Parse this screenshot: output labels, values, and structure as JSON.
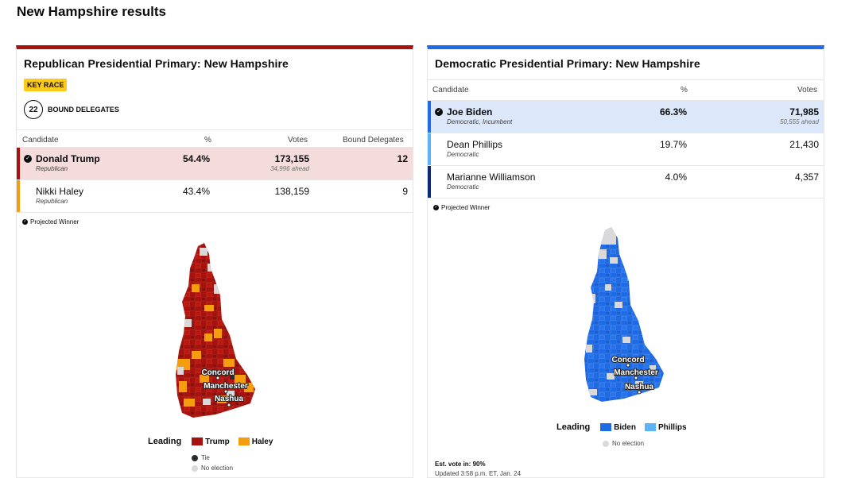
{
  "page": {
    "title": "New Hampshire results"
  },
  "rep": {
    "title": "Republican Presidential Primary: New Hampshire",
    "badge": "KEY RACE",
    "delegates_count": "22",
    "delegates_label": "BOUND DELEGATES",
    "headers": {
      "candidate": "Candidate",
      "pct": "%",
      "votes": "Votes",
      "delegates": "Bound Delegates"
    },
    "rows": [
      {
        "name": "Donald Trump",
        "party": "Republican",
        "pct": "54.4%",
        "votes": "173,155",
        "ahead": "34,996 ahead",
        "delegates": "12",
        "color": "#a8120e",
        "winner": true
      },
      {
        "name": "Nikki Haley",
        "party": "Republican",
        "pct": "43.4%",
        "votes": "138,159",
        "ahead": "",
        "delegates": "9",
        "color": "#f59d0c",
        "winner": false
      }
    ],
    "projected": "Projected Winner",
    "legend": {
      "lead": "Leading",
      "items": [
        "Trump",
        "Haley"
      ],
      "colors": [
        "#a8120e",
        "#f59d0c"
      ],
      "tie": "Tie",
      "no_election": "No election"
    },
    "cities": [
      "Concord",
      "Manchester",
      "Nashua"
    ]
  },
  "dem": {
    "title": "Democratic Presidential Primary: New Hampshire",
    "headers": {
      "candidate": "Candidate",
      "pct": "%",
      "votes": "Votes"
    },
    "rows": [
      {
        "name": "Joe Biden",
        "party": "Democratic, Incumbent",
        "pct": "66.3%",
        "votes": "71,985",
        "ahead": "50,555 ahead",
        "color": "#1e6be6",
        "winner": true
      },
      {
        "name": "Dean Phillips",
        "party": "Democratic",
        "pct": "19.7%",
        "votes": "21,430",
        "ahead": "",
        "color": "#5ab4f5",
        "winner": false
      },
      {
        "name": "Marianne Williamson",
        "party": "Democratic",
        "pct": "4.0%",
        "votes": "4,357",
        "ahead": "",
        "color": "#0a2a78",
        "winner": false
      }
    ],
    "projected": "Projected Winner",
    "legend": {
      "lead": "Leading",
      "items": [
        "Biden",
        "Phillips"
      ],
      "colors": [
        "#1e6be6",
        "#5ab4f5"
      ],
      "no_election": "No election"
    },
    "cities": [
      "Concord",
      "Manchester",
      "Nashua"
    ],
    "est_label": "Est. vote in: 90%",
    "updated": "Updated 3:58 p.m. ET, Jan. 24"
  }
}
